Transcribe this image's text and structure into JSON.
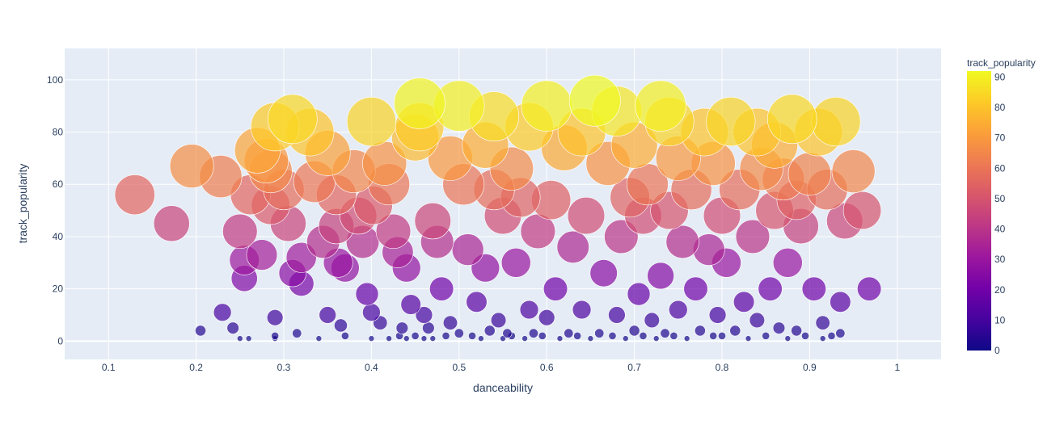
{
  "chart_data": {
    "type": "scatter",
    "title": "",
    "xlabel": "danceability",
    "ylabel": "track_popularity",
    "xlim": [
      0.05,
      1.05
    ],
    "ylim": [
      -7,
      112
    ],
    "x_ticks": [
      "0.1",
      "0.2",
      "0.3",
      "0.4",
      "0.5",
      "0.6",
      "0.7",
      "0.8",
      "0.9",
      "1"
    ],
    "y_ticks": [
      "0",
      "20",
      "40",
      "60",
      "80",
      "100"
    ],
    "grid": true,
    "marker_size_encodes": "track_popularity",
    "colorbar": {
      "title": "track_popularity",
      "ticks": [
        "0",
        "10",
        "20",
        "30",
        "40",
        "50",
        "60",
        "70",
        "80",
        "90"
      ],
      "range": [
        0,
        92
      ],
      "colors": [
        "#0d0887",
        "#46039f",
        "#7201a8",
        "#9c179e",
        "#bd3786",
        "#d8576b",
        "#ed7953",
        "#fb9f3a",
        "#fdca26",
        "#f0f921"
      ]
    },
    "points": [
      [
        0.13,
        56
      ],
      [
        0.172,
        45
      ],
      [
        0.195,
        67
      ],
      [
        0.228,
        63
      ],
      [
        0.205,
        4
      ],
      [
        0.23,
        11
      ],
      [
        0.242,
        5
      ],
      [
        0.25,
        1
      ],
      [
        0.26,
        1
      ],
      [
        0.25,
        42
      ],
      [
        0.255,
        31
      ],
      [
        0.255,
        24
      ],
      [
        0.262,
        56
      ],
      [
        0.27,
        73
      ],
      [
        0.275,
        33
      ],
      [
        0.28,
        69
      ],
      [
        0.285,
        65
      ],
      [
        0.29,
        82
      ],
      [
        0.285,
        52
      ],
      [
        0.29,
        2
      ],
      [
        0.29,
        1
      ],
      [
        0.29,
        9
      ],
      [
        0.3,
        58
      ],
      [
        0.31,
        85
      ],
      [
        0.305,
        45
      ],
      [
        0.31,
        26
      ],
      [
        0.315,
        3
      ],
      [
        0.32,
        22
      ],
      [
        0.32,
        32
      ],
      [
        0.33,
        80
      ],
      [
        0.335,
        61
      ],
      [
        0.34,
        1
      ],
      [
        0.345,
        38
      ],
      [
        0.35,
        72
      ],
      [
        0.35,
        10
      ],
      [
        0.36,
        56
      ],
      [
        0.36,
        44
      ],
      [
        0.362,
        30
      ],
      [
        0.365,
        6
      ],
      [
        0.37,
        2
      ],
      [
        0.37,
        28
      ],
      [
        0.38,
        65
      ],
      [
        0.385,
        48
      ],
      [
        0.39,
        38
      ],
      [
        0.395,
        18
      ],
      [
        0.4,
        1
      ],
      [
        0.4,
        11
      ],
      [
        0.4,
        84
      ],
      [
        0.402,
        52
      ],
      [
        0.41,
        7
      ],
      [
        0.415,
        68
      ],
      [
        0.42,
        1
      ],
      [
        0.42,
        60
      ],
      [
        0.425,
        42
      ],
      [
        0.43,
        34
      ],
      [
        0.432,
        2
      ],
      [
        0.435,
        5
      ],
      [
        0.44,
        1
      ],
      [
        0.44,
        28
      ],
      [
        0.445,
        14
      ],
      [
        0.45,
        78
      ],
      [
        0.45,
        2
      ],
      [
        0.455,
        91
      ],
      [
        0.455,
        82
      ],
      [
        0.46,
        1
      ],
      [
        0.46,
        10
      ],
      [
        0.465,
        5
      ],
      [
        0.47,
        46
      ],
      [
        0.47,
        1
      ],
      [
        0.475,
        38
      ],
      [
        0.48,
        20
      ],
      [
        0.485,
        2
      ],
      [
        0.49,
        7
      ],
      [
        0.49,
        70
      ],
      [
        0.5,
        90
      ],
      [
        0.5,
        3
      ],
      [
        0.505,
        60
      ],
      [
        0.51,
        35
      ],
      [
        0.515,
        2
      ],
      [
        0.52,
        15
      ],
      [
        0.525,
        1
      ],
      [
        0.53,
        75
      ],
      [
        0.53,
        28
      ],
      [
        0.535,
        4
      ],
      [
        0.54,
        86
      ],
      [
        0.54,
        58
      ],
      [
        0.545,
        8
      ],
      [
        0.55,
        1
      ],
      [
        0.55,
        48
      ],
      [
        0.555,
        3
      ],
      [
        0.56,
        66
      ],
      [
        0.56,
        2
      ],
      [
        0.565,
        30
      ],
      [
        0.57,
        55
      ],
      [
        0.575,
        1
      ],
      [
        0.58,
        12
      ],
      [
        0.58,
        82
      ],
      [
        0.585,
        3
      ],
      [
        0.59,
        42
      ],
      [
        0.595,
        2
      ],
      [
        0.6,
        90
      ],
      [
        0.6,
        9
      ],
      [
        0.605,
        54
      ],
      [
        0.61,
        20
      ],
      [
        0.615,
        1
      ],
      [
        0.62,
        74
      ],
      [
        0.625,
        3
      ],
      [
        0.63,
        36
      ],
      [
        0.635,
        2
      ],
      [
        0.64,
        80
      ],
      [
        0.64,
        12
      ],
      [
        0.645,
        48
      ],
      [
        0.65,
        1
      ],
      [
        0.655,
        92
      ],
      [
        0.66,
        3
      ],
      [
        0.665,
        26
      ],
      [
        0.67,
        68
      ],
      [
        0.675,
        2
      ],
      [
        0.68,
        88
      ],
      [
        0.68,
        10
      ],
      [
        0.685,
        40
      ],
      [
        0.69,
        1
      ],
      [
        0.695,
        55
      ],
      [
        0.7,
        4
      ],
      [
        0.7,
        75
      ],
      [
        0.705,
        18
      ],
      [
        0.71,
        2
      ],
      [
        0.71,
        48
      ],
      [
        0.715,
        60
      ],
      [
        0.72,
        8
      ],
      [
        0.725,
        1
      ],
      [
        0.73,
        90
      ],
      [
        0.73,
        25
      ],
      [
        0.735,
        3
      ],
      [
        0.74,
        84
      ],
      [
        0.74,
        50
      ],
      [
        0.745,
        2
      ],
      [
        0.75,
        70
      ],
      [
        0.75,
        12
      ],
      [
        0.755,
        38
      ],
      [
        0.76,
        1
      ],
      [
        0.765,
        58
      ],
      [
        0.77,
        20
      ],
      [
        0.775,
        4
      ],
      [
        0.78,
        80
      ],
      [
        0.785,
        35
      ],
      [
        0.79,
        2
      ],
      [
        0.79,
        68
      ],
      [
        0.795,
        10
      ],
      [
        0.8,
        48
      ],
      [
        0.8,
        2
      ],
      [
        0.805,
        30
      ],
      [
        0.81,
        84
      ],
      [
        0.815,
        4
      ],
      [
        0.82,
        58
      ],
      [
        0.825,
        15
      ],
      [
        0.83,
        1
      ],
      [
        0.835,
        40
      ],
      [
        0.84,
        80
      ],
      [
        0.84,
        8
      ],
      [
        0.845,
        66
      ],
      [
        0.85,
        2
      ],
      [
        0.855,
        20
      ],
      [
        0.86,
        75
      ],
      [
        0.86,
        50
      ],
      [
        0.865,
        5
      ],
      [
        0.87,
        62
      ],
      [
        0.875,
        1
      ],
      [
        0.875,
        30
      ],
      [
        0.88,
        85
      ],
      [
        0.885,
        4
      ],
      [
        0.885,
        54
      ],
      [
        0.89,
        44
      ],
      [
        0.895,
        2
      ],
      [
        0.9,
        64
      ],
      [
        0.905,
        20
      ],
      [
        0.91,
        80
      ],
      [
        0.915,
        7
      ],
      [
        0.915,
        1
      ],
      [
        0.92,
        58
      ],
      [
        0.925,
        2
      ],
      [
        0.93,
        84
      ],
      [
        0.935,
        15
      ],
      [
        0.935,
        3
      ],
      [
        0.94,
        46
      ],
      [
        0.95,
        65
      ],
      [
        0.96,
        50
      ],
      [
        0.968,
        20
      ]
    ]
  }
}
